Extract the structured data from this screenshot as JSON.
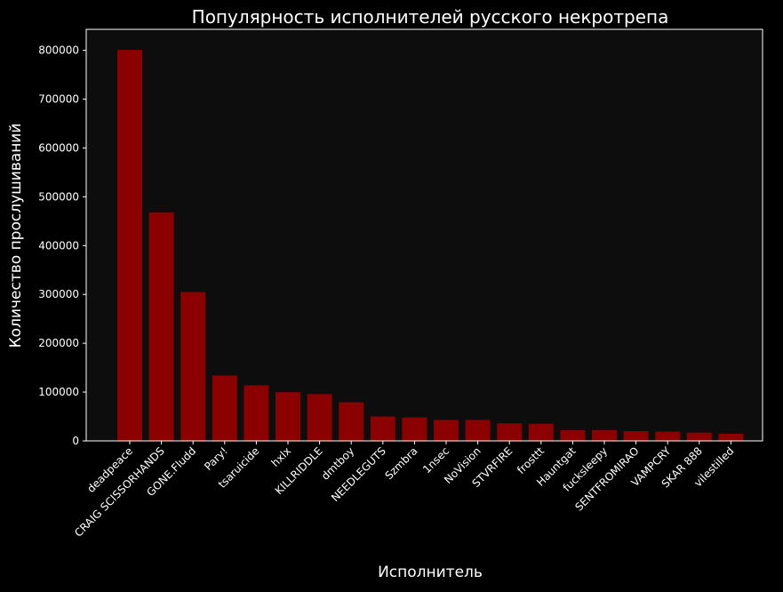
{
  "chart_data": {
    "type": "bar",
    "title": "Популярность исполнителей русского некротрепа",
    "xlabel": "Исполнитель",
    "ylabel": "Количество прослушиваний",
    "categories": [
      "deadpeace",
      "CRAIG SCISSORHANDS",
      "GONE.Fludd",
      "Pary!",
      "tsaruicide",
      "hxlx",
      "KILLRIDDLE",
      "dmtboy",
      "NEEDLEGUTS",
      "Szmbra",
      "1nsec",
      "NoVision",
      "STVRFIRE",
      "frosttt",
      "Hauntgat",
      "fucksleepy",
      "SENTFROMIRAO",
      "VAMPCRY",
      "SKAR 888",
      "vilestilled"
    ],
    "values": [
      801000,
      468000,
      305000,
      134000,
      114000,
      100000,
      96000,
      79000,
      50000,
      48000,
      43000,
      43000,
      36000,
      35000,
      22000,
      22000,
      20000,
      19000,
      17000,
      15000
    ],
    "ylim": [
      0,
      843000
    ],
    "yticks": [
      0,
      100000,
      200000,
      300000,
      400000,
      500000,
      600000,
      700000,
      800000
    ],
    "grid": false,
    "colors": {
      "background": "#000000",
      "plot_background": "#0d0d0d",
      "bar": "#8b0000",
      "text": "#ffffff"
    }
  }
}
